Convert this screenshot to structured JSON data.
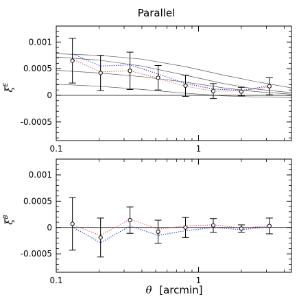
{
  "title": "Parallel",
  "xlabel_symbol": "θ",
  "xlabel_unit": "[arcmin]",
  "chart_data": [
    {
      "type": "scatter",
      "panel": "E",
      "ylabel_symbol": "ξ",
      "ylabel_sup": "E",
      "xscale": "log",
      "xlim": [
        0.1,
        4.5
      ],
      "ylim": [
        -0.00085,
        0.0013
      ],
      "xticks": [
        0.1,
        1
      ],
      "xtick_labels": [
        "0.1",
        "1"
      ],
      "yticks": [
        -0.0005,
        0,
        0.0005,
        0.001
      ],
      "ytick_labels": [
        "-0.0005",
        "0",
        "0.0005",
        "0.001"
      ],
      "zero_line": true,
      "x": [
        0.13,
        0.205,
        0.33,
        0.52,
        0.81,
        1.27,
        2.0,
        3.15
      ],
      "y": [
        0.00065,
        0.00042,
        0.00046,
        0.00033,
        0.00018,
        8e-05,
        7e-05,
        0.00017
      ],
      "yerr": [
        0.00042,
        0.00033,
        0.00035,
        0.00023,
        0.0002,
        0.00014,
        8e-05,
        0.00016
      ],
      "dotted_red": [
        0.00068,
        0.00044,
        0.00046,
        0.00032,
        0.00017,
        8e-05,
        8e-05,
        0.00016
      ],
      "dotted_blue": [
        0.00078,
        0.00055,
        0.00057,
        0.0004,
        0.00022,
        0.00012,
        9e-05,
        0.00018
      ],
      "models": [
        {
          "x": [
            0.1,
            0.2,
            0.4,
            0.8,
            1.5,
            2.5,
            4.5
          ],
          "y": [
            0.00078,
            0.00075,
            0.00068,
            0.00054,
            0.00038,
            0.00026,
            0.00014
          ]
        },
        {
          "x": [
            0.1,
            0.2,
            0.4,
            0.8,
            1.5,
            2.5,
            4.5
          ],
          "y": [
            0.00072,
            0.00066,
            0.00055,
            0.00038,
            0.00022,
            0.00012,
            5e-05
          ]
        },
        {
          "x": [
            0.1,
            0.2,
            0.4,
            0.8,
            1.5,
            2.5,
            4.5
          ],
          "y": [
            0.00047,
            0.00042,
            0.00035,
            0.00025,
            0.00014,
            7e-05,
            2e-05
          ]
        },
        {
          "x": [
            0.1,
            0.2,
            0.4,
            0.8,
            1.5,
            2.5,
            4.5
          ],
          "y": [
            0.00021,
            0.00017,
            0.00011,
            4e-05,
            -1e-05,
            -3e-05,
            -4e-05
          ]
        }
      ]
    },
    {
      "type": "scatter",
      "panel": "B",
      "ylabel_symbol": "ξ",
      "ylabel_sup": "B",
      "xscale": "log",
      "xlim": [
        0.1,
        4.5
      ],
      "ylim": [
        -0.00085,
        0.0013
      ],
      "xticks": [
        0.1,
        1
      ],
      "xtick_labels": [
        "0.1",
        "1"
      ],
      "yticks": [
        -0.0005,
        0,
        0.0005,
        0.001
      ],
      "ytick_labels": [
        "-0.0005",
        "0",
        "0.0005",
        "0.001"
      ],
      "zero_line": true,
      "x": [
        0.13,
        0.205,
        0.33,
        0.52,
        0.81,
        1.27,
        2.0,
        3.15
      ],
      "y": [
        7e-05,
        -0.00019,
        0.00014,
        -8e-05,
        0.0,
        4e-05,
        -2e-05,
        3e-05
      ],
      "yerr": [
        0.0005,
        0.00037,
        0.00025,
        0.00022,
        0.00019,
        0.00013,
        7e-05,
        0.00015
      ],
      "dotted_red": [
        5e-05,
        -0.00015,
        0.00016,
        -3e-05,
        3e-05,
        5e-05,
        -1e-05,
        3e-05
      ],
      "dotted_blue": [
        1e-05,
        -0.00029,
        3e-05,
        -0.00015,
        -6e-05,
        0.0,
        -4e-05,
        1e-05
      ],
      "models": []
    }
  ]
}
